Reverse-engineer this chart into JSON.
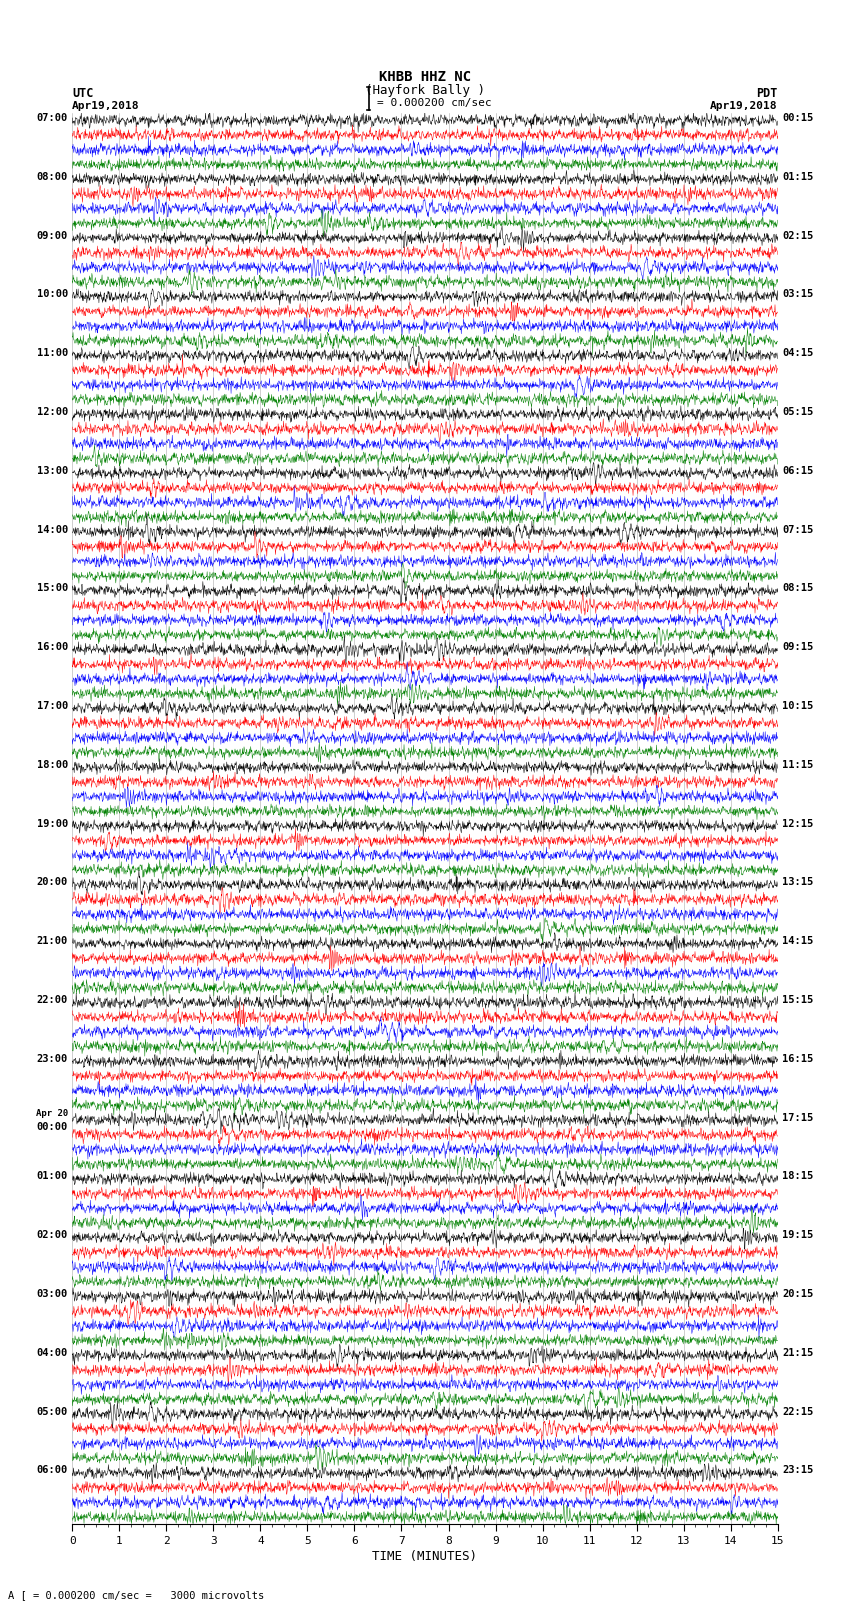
{
  "title_line1": "KHBB HHZ NC",
  "title_line2": "(Hayfork Bally )",
  "scale_label": "= 0.000200 cm/sec",
  "bottom_label": "A [ = 0.000200 cm/sec =   3000 microvolts",
  "xlabel": "TIME (MINUTES)",
  "left_header_line1": "UTC",
  "left_header_line2": "Apr19,2018",
  "right_header_line1": "PDT",
  "right_header_line2": "Apr19,2018",
  "left_times": [
    "07:00",
    "08:00",
    "09:00",
    "10:00",
    "11:00",
    "12:00",
    "13:00",
    "14:00",
    "15:00",
    "16:00",
    "17:00",
    "18:00",
    "19:00",
    "20:00",
    "21:00",
    "22:00",
    "23:00",
    "Apr 20",
    "00:00",
    "01:00",
    "02:00",
    "03:00",
    "04:00",
    "05:00",
    "06:00"
  ],
  "left_times_special": [
    17
  ],
  "right_times": [
    "00:15",
    "01:15",
    "02:15",
    "03:15",
    "04:15",
    "05:15",
    "06:15",
    "07:15",
    "08:15",
    "09:15",
    "10:15",
    "11:15",
    "12:15",
    "13:15",
    "14:15",
    "15:15",
    "16:15",
    "17:15",
    "18:15",
    "19:15",
    "20:15",
    "21:15",
    "22:15",
    "23:15"
  ],
  "colors": [
    "black",
    "red",
    "blue",
    "green"
  ],
  "n_rows": 24,
  "traces_per_row": 4,
  "fig_width": 8.5,
  "fig_height": 16.13,
  "bg_color": "white",
  "x_ticks": [
    0,
    1,
    2,
    3,
    4,
    5,
    6,
    7,
    8,
    9,
    10,
    11,
    12,
    13,
    14,
    15
  ],
  "grid_color": "#888888",
  "lw": 0.5
}
